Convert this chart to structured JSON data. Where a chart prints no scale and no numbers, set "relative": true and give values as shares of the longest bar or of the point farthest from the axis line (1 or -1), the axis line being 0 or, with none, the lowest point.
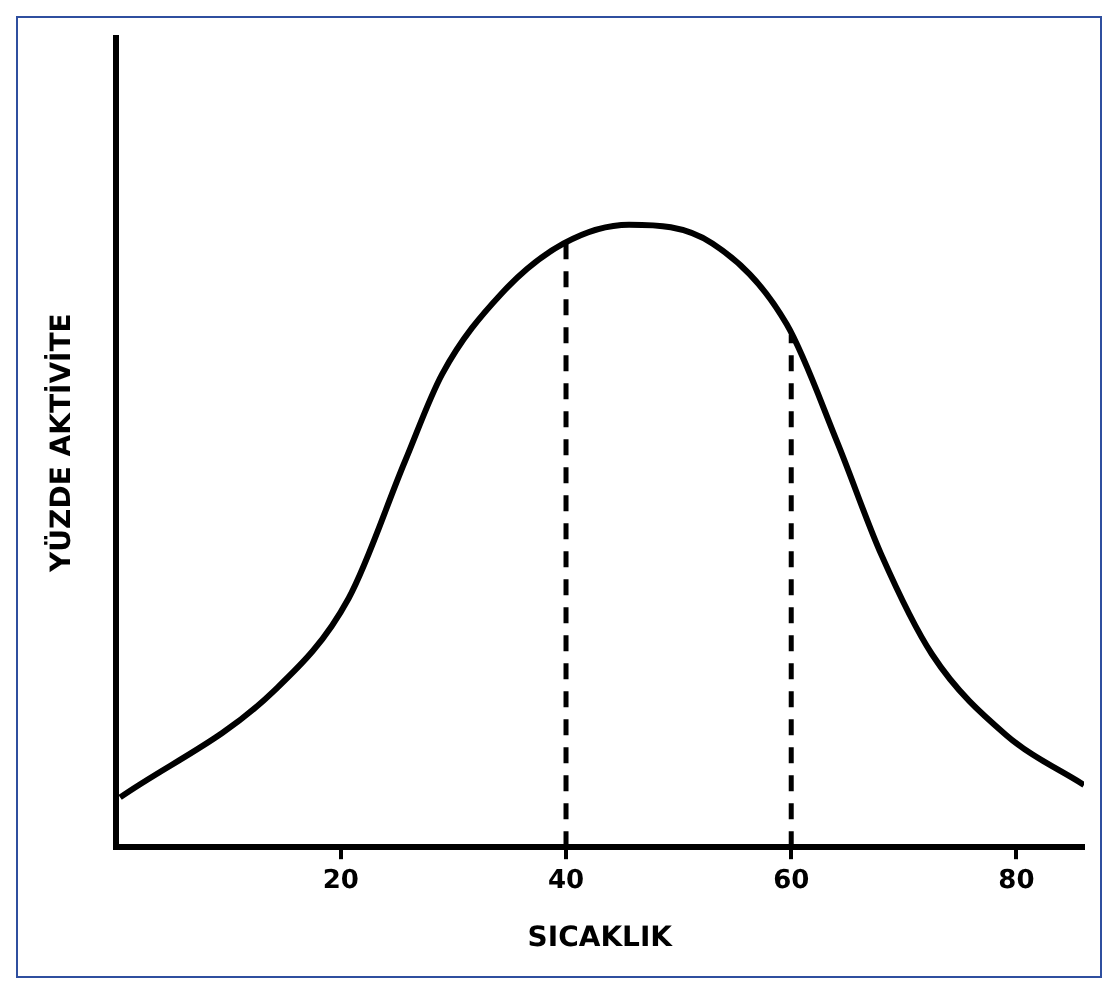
{
  "chart_data": {
    "type": "line",
    "xlabel": "SICAKLIK",
    "ylabel": "YÜZDE AKTİVİTE",
    "relative": true,
    "color": "#000000",
    "x": [
      0.4,
      14,
      20.7,
      25.7,
      29,
      34.3,
      39.8,
      45.6,
      53,
      59.6,
      64.1,
      68,
      72.5,
      79.1,
      86
    ],
    "values": [
      0.08,
      0.25,
      0.4,
      0.62,
      0.76,
      0.89,
      0.97,
      1.0,
      0.97,
      0.84,
      0.65,
      0.47,
      0.31,
      0.18,
      0.1
    ],
    "xlim": [
      0,
      86
    ],
    "xticks": [
      20,
      40,
      60,
      80
    ],
    "grid": false,
    "marker": "none",
    "line_style": "solid",
    "ref_lines": [
      {
        "axis": "x",
        "value": 40,
        "line_style": "dashed"
      },
      {
        "axis": "x",
        "value": 60,
        "line_style": "dashed"
      }
    ]
  }
}
